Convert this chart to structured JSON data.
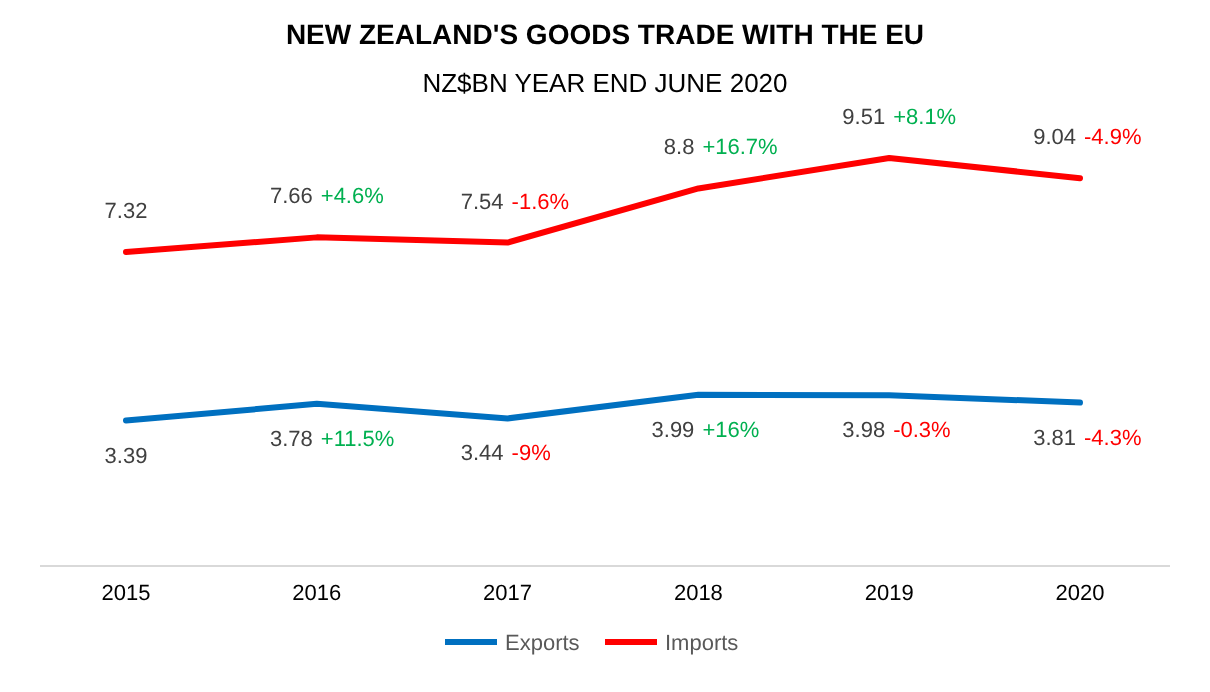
{
  "chart_data": {
    "type": "line",
    "title": "NEW ZEALAND'S GOODS TRADE WITH THE EU",
    "subtitle": "NZ$BN YEAR END JUNE 2020",
    "categories": [
      "2015",
      "2016",
      "2017",
      "2018",
      "2019",
      "2020"
    ],
    "series": [
      {
        "name": "Exports",
        "color": "#0070c0",
        "values": [
          3.39,
          3.78,
          3.44,
          3.99,
          3.98,
          3.81
        ]
      },
      {
        "name": "Imports",
        "color": "#ff0000",
        "values": [
          7.32,
          7.66,
          7.54,
          8.8,
          9.51,
          9.04
        ]
      }
    ],
    "data_labels": true,
    "legend": "bottom",
    "marker": "none",
    "grid": false,
    "annotations": [
      {
        "text": "+11.5%",
        "x": "2016",
        "y": 3.78
      },
      {
        "text": "-9%",
        "x": "2017",
        "y": 3.44
      },
      {
        "text": "+16%",
        "x": "2018",
        "y": 3.99
      },
      {
        "text": "-0.3%",
        "x": "2019",
        "y": 3.98
      },
      {
        "text": "-4.3%",
        "x": "2020",
        "y": 3.81
      },
      {
        "text": "+4.6%",
        "x": "2016",
        "y": 7.66
      },
      {
        "text": "-1.6%",
        "x": "2017",
        "y": 7.54
      },
      {
        "text": "+16.7%",
        "x": "2018",
        "y": 8.8
      },
      {
        "text": "+8.1%",
        "x": "2019",
        "y": 9.51
      },
      {
        "text": "-4.9%",
        "x": "2020",
        "y": 9.04
      }
    ]
  }
}
